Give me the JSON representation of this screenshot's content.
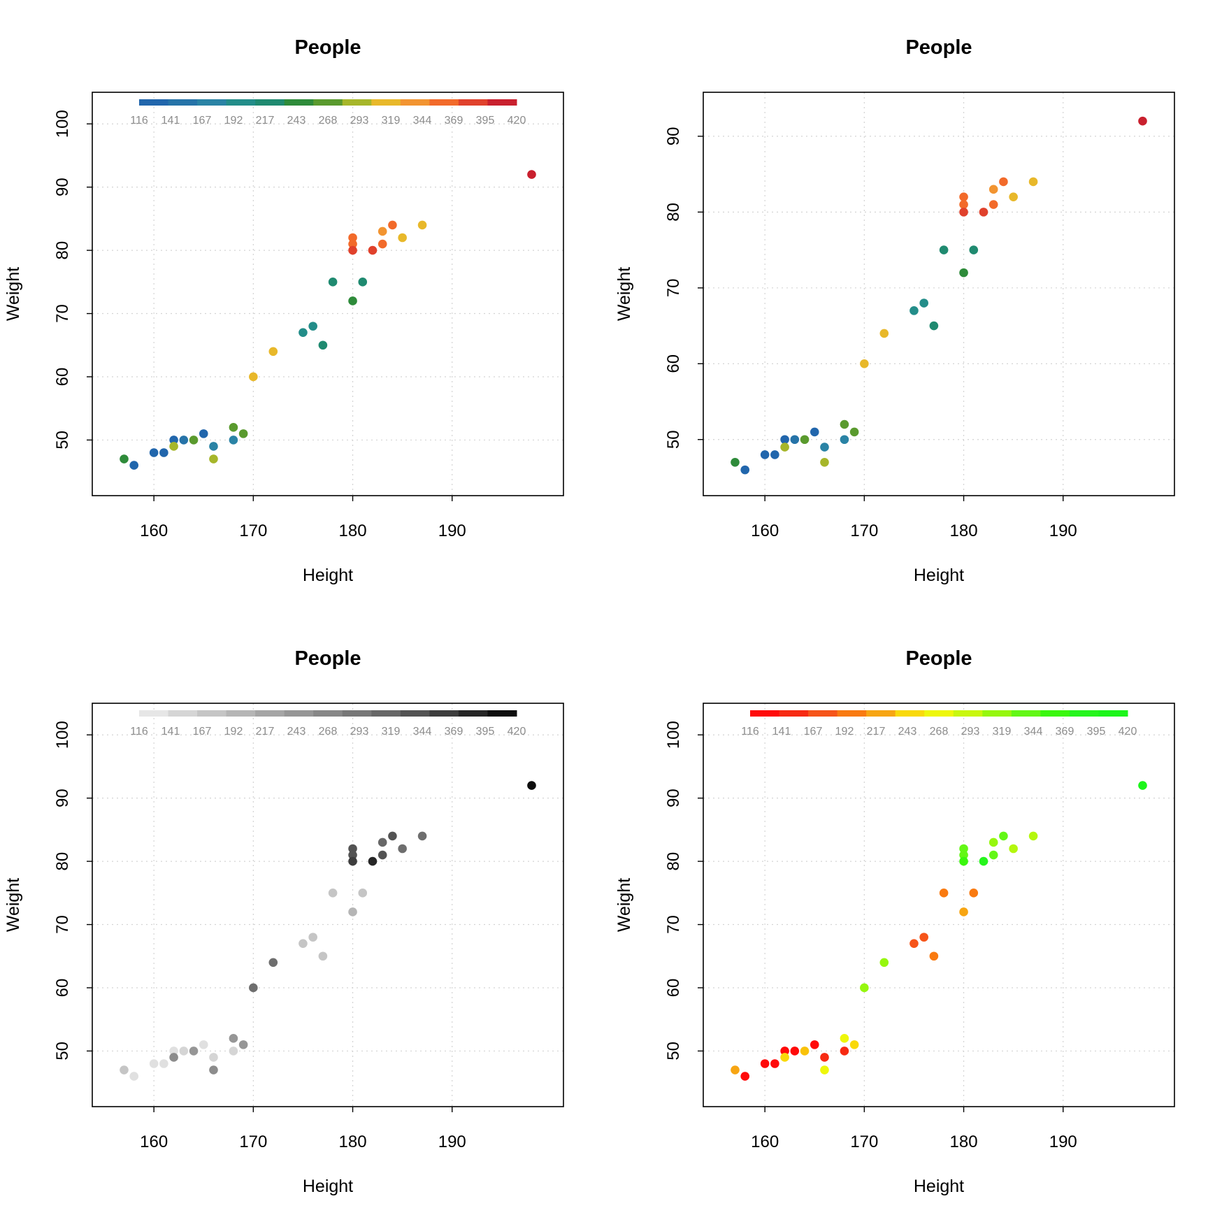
{
  "chart_data": [
    {
      "panel": "top-left",
      "type": "scatter",
      "title": "People",
      "xlabel": "Height",
      "ylabel": "Weight",
      "xlim": [
        153.8,
        201.2
      ],
      "ylim": [
        41.2,
        105.0
      ],
      "xticks": [
        160,
        170,
        180,
        190
      ],
      "yticks": [
        50,
        60,
        70,
        80,
        90,
        100
      ],
      "grid": true,
      "legend": {
        "placement": "top",
        "labels": [
          "116",
          "141",
          "167",
          "192",
          "217",
          "243",
          "268",
          "293",
          "319",
          "344",
          "369",
          "395",
          "420"
        ],
        "colors": [
          "#2166ac",
          "#2673a8",
          "#2a83a5",
          "#238d89",
          "#1f8a70",
          "#2e8b3a",
          "#5a9a2e",
          "#a6b62a",
          "#e8b82a",
          "#f29431",
          "#f26a2a",
          "#e0412c",
          "#c9202e"
        ]
      },
      "points": [
        {
          "x": 157,
          "y": 47,
          "color": "#2e8b3a"
        },
        {
          "x": 158,
          "y": 46,
          "color": "#2166ac"
        },
        {
          "x": 160,
          "y": 48,
          "color": "#2166ac"
        },
        {
          "x": 161,
          "y": 48,
          "color": "#2166ac"
        },
        {
          "x": 162,
          "y": 50,
          "color": "#2166ac"
        },
        {
          "x": 162,
          "y": 49,
          "color": "#a6b62a"
        },
        {
          "x": 163,
          "y": 50,
          "color": "#2673a8"
        },
        {
          "x": 164,
          "y": 50,
          "color": "#5a9a2e"
        },
        {
          "x": 165,
          "y": 51,
          "color": "#2166ac"
        },
        {
          "x": 166,
          "y": 49,
          "color": "#2a83a5"
        },
        {
          "x": 166,
          "y": 47,
          "color": "#a6b62a"
        },
        {
          "x": 168,
          "y": 52,
          "color": "#5a9a2e"
        },
        {
          "x": 168,
          "y": 50,
          "color": "#2a83a5"
        },
        {
          "x": 169,
          "y": 51,
          "color": "#5a9a2e"
        },
        {
          "x": 170,
          "y": 60,
          "color": "#e8b82a"
        },
        {
          "x": 172,
          "y": 64,
          "color": "#e8b82a"
        },
        {
          "x": 175,
          "y": 67,
          "color": "#238d89"
        },
        {
          "x": 176,
          "y": 68,
          "color": "#238d89"
        },
        {
          "x": 177,
          "y": 65,
          "color": "#1f8a70"
        },
        {
          "x": 178,
          "y": 75,
          "color": "#1f8a70"
        },
        {
          "x": 180,
          "y": 82,
          "color": "#f26a2a"
        },
        {
          "x": 180,
          "y": 81,
          "color": "#f26a2a"
        },
        {
          "x": 180,
          "y": 80,
          "color": "#e0412c"
        },
        {
          "x": 180,
          "y": 72,
          "color": "#2e8b3a"
        },
        {
          "x": 181,
          "y": 75,
          "color": "#1f8a70"
        },
        {
          "x": 182,
          "y": 80,
          "color": "#e0412c"
        },
        {
          "x": 183,
          "y": 83,
          "color": "#f29431"
        },
        {
          "x": 183,
          "y": 81,
          "color": "#f26a2a"
        },
        {
          "x": 184,
          "y": 84,
          "color": "#f26a2a"
        },
        {
          "x": 185,
          "y": 82,
          "color": "#e8b82a"
        },
        {
          "x": 187,
          "y": 84,
          "color": "#e8b82a"
        },
        {
          "x": 198,
          "y": 92,
          "color": "#c9202e"
        }
      ]
    },
    {
      "panel": "top-right",
      "type": "scatter",
      "title": "People",
      "xlabel": "Height",
      "ylabel": "Weight",
      "xlim": [
        153.8,
        201.2
      ],
      "ylim": [
        42.6,
        95.8
      ],
      "xticks": [
        160,
        170,
        180,
        190
      ],
      "yticks": [
        50,
        60,
        70,
        80,
        90
      ],
      "grid": true,
      "points": [
        {
          "x": 157,
          "y": 47,
          "color": "#2e8b3a"
        },
        {
          "x": 158,
          "y": 46,
          "color": "#2166ac"
        },
        {
          "x": 160,
          "y": 48,
          "color": "#2166ac"
        },
        {
          "x": 161,
          "y": 48,
          "color": "#2166ac"
        },
        {
          "x": 162,
          "y": 50,
          "color": "#2166ac"
        },
        {
          "x": 162,
          "y": 49,
          "color": "#a6b62a"
        },
        {
          "x": 163,
          "y": 50,
          "color": "#2673a8"
        },
        {
          "x": 164,
          "y": 50,
          "color": "#5a9a2e"
        },
        {
          "x": 165,
          "y": 51,
          "color": "#2166ac"
        },
        {
          "x": 166,
          "y": 49,
          "color": "#2a83a5"
        },
        {
          "x": 166,
          "y": 47,
          "color": "#a6b62a"
        },
        {
          "x": 168,
          "y": 52,
          "color": "#5a9a2e"
        },
        {
          "x": 168,
          "y": 50,
          "color": "#2a83a5"
        },
        {
          "x": 169,
          "y": 51,
          "color": "#5a9a2e"
        },
        {
          "x": 170,
          "y": 60,
          "color": "#e8b82a"
        },
        {
          "x": 172,
          "y": 64,
          "color": "#e8b82a"
        },
        {
          "x": 175,
          "y": 67,
          "color": "#238d89"
        },
        {
          "x": 176,
          "y": 68,
          "color": "#238d89"
        },
        {
          "x": 177,
          "y": 65,
          "color": "#1f8a70"
        },
        {
          "x": 178,
          "y": 75,
          "color": "#1f8a70"
        },
        {
          "x": 180,
          "y": 82,
          "color": "#f26a2a"
        },
        {
          "x": 180,
          "y": 81,
          "color": "#f26a2a"
        },
        {
          "x": 180,
          "y": 80,
          "color": "#e0412c"
        },
        {
          "x": 180,
          "y": 72,
          "color": "#2e8b3a"
        },
        {
          "x": 181,
          "y": 75,
          "color": "#1f8a70"
        },
        {
          "x": 182,
          "y": 80,
          "color": "#e0412c"
        },
        {
          "x": 183,
          "y": 83,
          "color": "#f29431"
        },
        {
          "x": 183,
          "y": 81,
          "color": "#f26a2a"
        },
        {
          "x": 184,
          "y": 84,
          "color": "#f26a2a"
        },
        {
          "x": 185,
          "y": 82,
          "color": "#e8b82a"
        },
        {
          "x": 187,
          "y": 84,
          "color": "#e8b82a"
        },
        {
          "x": 198,
          "y": 92,
          "color": "#c9202e"
        }
      ]
    },
    {
      "panel": "bottom-left",
      "type": "scatter",
      "title": "People",
      "xlabel": "Height",
      "ylabel": "Weight",
      "xlim": [
        153.8,
        201.2
      ],
      "ylim": [
        41.2,
        105.0
      ],
      "xticks": [
        160,
        170,
        180,
        190
      ],
      "yticks": [
        50,
        60,
        70,
        80,
        90,
        100
      ],
      "grid": true,
      "legend": {
        "placement": "top",
        "labels": [
          "116",
          "141",
          "167",
          "192",
          "217",
          "243",
          "268",
          "293",
          "319",
          "344",
          "369",
          "395",
          "420"
        ],
        "colors": [
          "#e6e6e6",
          "#d5d5d5",
          "#c5c5c5",
          "#b5b5b5",
          "#a5a5a5",
          "#969696",
          "#878787",
          "#777777",
          "#676767",
          "#535353",
          "#3d3d3d",
          "#262626",
          "#0d0d0d"
        ]
      },
      "points": [
        {
          "x": 157,
          "y": 47,
          "color": "#c5c5c5"
        },
        {
          "x": 158,
          "y": 46,
          "color": "#e0e0e0"
        },
        {
          "x": 160,
          "y": 48,
          "color": "#e0e0e0"
        },
        {
          "x": 161,
          "y": 48,
          "color": "#e0e0e0"
        },
        {
          "x": 162,
          "y": 50,
          "color": "#e0e0e0"
        },
        {
          "x": 162,
          "y": 49,
          "color": "#8c8c8c"
        },
        {
          "x": 163,
          "y": 50,
          "color": "#d5d5d5"
        },
        {
          "x": 164,
          "y": 50,
          "color": "#969696"
        },
        {
          "x": 165,
          "y": 51,
          "color": "#e0e0e0"
        },
        {
          "x": 166,
          "y": 49,
          "color": "#d5d5d5"
        },
        {
          "x": 166,
          "y": 47,
          "color": "#8c8c8c"
        },
        {
          "x": 168,
          "y": 52,
          "color": "#969696"
        },
        {
          "x": 168,
          "y": 50,
          "color": "#d5d5d5"
        },
        {
          "x": 169,
          "y": 51,
          "color": "#969696"
        },
        {
          "x": 170,
          "y": 60,
          "color": "#6e6e6e"
        },
        {
          "x": 172,
          "y": 64,
          "color": "#6e6e6e"
        },
        {
          "x": 175,
          "y": 67,
          "color": "#c5c5c5"
        },
        {
          "x": 176,
          "y": 68,
          "color": "#c5c5c5"
        },
        {
          "x": 177,
          "y": 65,
          "color": "#c5c5c5"
        },
        {
          "x": 178,
          "y": 75,
          "color": "#c5c5c5"
        },
        {
          "x": 180,
          "y": 82,
          "color": "#535353"
        },
        {
          "x": 180,
          "y": 81,
          "color": "#535353"
        },
        {
          "x": 180,
          "y": 80,
          "color": "#3d3d3d"
        },
        {
          "x": 180,
          "y": 72,
          "color": "#b5b5b5"
        },
        {
          "x": 181,
          "y": 75,
          "color": "#c5c5c5"
        },
        {
          "x": 182,
          "y": 80,
          "color": "#262626"
        },
        {
          "x": 183,
          "y": 83,
          "color": "#676767"
        },
        {
          "x": 183,
          "y": 81,
          "color": "#535353"
        },
        {
          "x": 184,
          "y": 84,
          "color": "#535353"
        },
        {
          "x": 185,
          "y": 82,
          "color": "#6e6e6e"
        },
        {
          "x": 187,
          "y": 84,
          "color": "#6e6e6e"
        },
        {
          "x": 198,
          "y": 92,
          "color": "#0d0d0d"
        }
      ]
    },
    {
      "panel": "bottom-right",
      "type": "scatter",
      "title": "People",
      "xlabel": "Height",
      "ylabel": "Weight",
      "xlim": [
        153.8,
        201.2
      ],
      "ylim": [
        41.2,
        105.0
      ],
      "xticks": [
        160,
        170,
        180,
        190
      ],
      "yticks": [
        50,
        60,
        70,
        80,
        90,
        100
      ],
      "grid": true,
      "legend": {
        "placement": "top",
        "labels": [
          "116",
          "141",
          "167",
          "192",
          "217",
          "243",
          "268",
          "293",
          "319",
          "344",
          "369",
          "395",
          "420"
        ],
        "colors": [
          "#ff0a0a",
          "#f72a12",
          "#f65419",
          "#f97a10",
          "#f7a512",
          "#f9d90a",
          "#eef70a",
          "#c8f70e",
          "#96f70e",
          "#63f716",
          "#3af70e",
          "#26f51d",
          "#1cf51a"
        ]
      },
      "points": [
        {
          "x": 157,
          "y": 47,
          "color": "#f7a512"
        },
        {
          "x": 158,
          "y": 46,
          "color": "#ff0a0a"
        },
        {
          "x": 160,
          "y": 48,
          "color": "#ff0a0a"
        },
        {
          "x": 161,
          "y": 48,
          "color": "#ff0a0a"
        },
        {
          "x": 162,
          "y": 50,
          "color": "#ff0a0a"
        },
        {
          "x": 162,
          "y": 49,
          "color": "#f9d90a"
        },
        {
          "x": 163,
          "y": 50,
          "color": "#ff0a0a"
        },
        {
          "x": 164,
          "y": 50,
          "color": "#f9c20a"
        },
        {
          "x": 165,
          "y": 51,
          "color": "#ff0a0a"
        },
        {
          "x": 166,
          "y": 49,
          "color": "#f72a12"
        },
        {
          "x": 166,
          "y": 47,
          "color": "#eef70a"
        },
        {
          "x": 168,
          "y": 52,
          "color": "#eef70a"
        },
        {
          "x": 168,
          "y": 50,
          "color": "#f72a12"
        },
        {
          "x": 169,
          "y": 51,
          "color": "#f9d90a"
        },
        {
          "x": 170,
          "y": 60,
          "color": "#96f70e"
        },
        {
          "x": 172,
          "y": 64,
          "color": "#96f70e"
        },
        {
          "x": 175,
          "y": 67,
          "color": "#f65419"
        },
        {
          "x": 176,
          "y": 68,
          "color": "#f65419"
        },
        {
          "x": 177,
          "y": 65,
          "color": "#f97a10"
        },
        {
          "x": 178,
          "y": 75,
          "color": "#f97a10"
        },
        {
          "x": 180,
          "y": 82,
          "color": "#63f716"
        },
        {
          "x": 180,
          "y": 81,
          "color": "#63f716"
        },
        {
          "x": 180,
          "y": 80,
          "color": "#3af70e"
        },
        {
          "x": 180,
          "y": 72,
          "color": "#f7a512"
        },
        {
          "x": 181,
          "y": 75,
          "color": "#f97a10"
        },
        {
          "x": 182,
          "y": 80,
          "color": "#26f51d"
        },
        {
          "x": 183,
          "y": 83,
          "color": "#96f70e"
        },
        {
          "x": 183,
          "y": 81,
          "color": "#63f716"
        },
        {
          "x": 184,
          "y": 84,
          "color": "#63f716"
        },
        {
          "x": 185,
          "y": 82,
          "color": "#b4f70e"
        },
        {
          "x": 187,
          "y": 84,
          "color": "#b4f70e"
        },
        {
          "x": 198,
          "y": 92,
          "color": "#1cf51a"
        }
      ]
    }
  ]
}
